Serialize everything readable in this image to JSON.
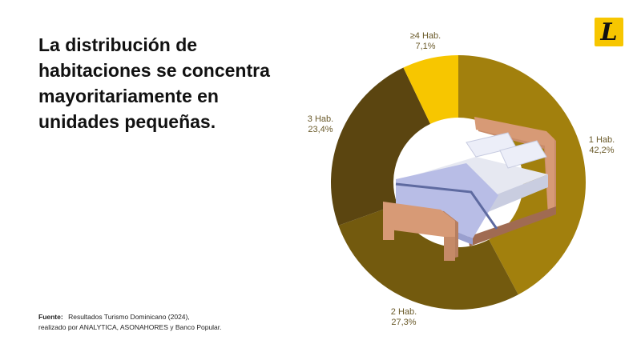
{
  "title": "La distribución de habitaciones se concentra mayoritariamente en unidades pequeñas.",
  "source": {
    "label": "Fuente:",
    "line1": "Resultados Turismo Dominicano (2024),",
    "line2": "realizado por ANALYTICA, ASONAHORES y Banco Popular."
  },
  "logo": {
    "letter": "L",
    "icon": "listin-logo-icon"
  },
  "chart_data": {
    "type": "pie",
    "donut": true,
    "center_icon": "bed-icon",
    "unit": "%",
    "slices": [
      {
        "label": "1 Hab.",
        "value": 42.2,
        "value_text": "42,2%",
        "color": "#a2800d"
      },
      {
        "label": "2 Hab.",
        "value": 27.3,
        "value_text": "27,3%",
        "color": "#735a0e"
      },
      {
        "label": "3 Hab.",
        "value": 23.4,
        "value_text": "23,4%",
        "color": "#5b4510"
      },
      {
        "label": "≥4 Hab.",
        "value": 7.1,
        "value_text": "7,1%",
        "color": "#f7c600"
      }
    ],
    "label_color": "#6a5a2a"
  }
}
